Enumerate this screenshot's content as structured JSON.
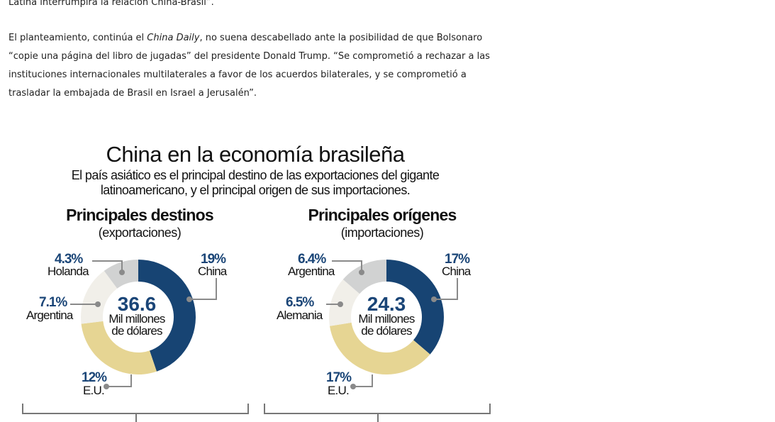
{
  "article": {
    "line0": "Latina interrumpirá la relación China-Brasil”.",
    "p1_a": "El planteamiento, continúa el ",
    "p1_em": "China Daily",
    "p1_b": ", no suena descabellado ante la posibilidad de que Bolsonaro “copie una página del libro de jugadas” del presidente Donald Trump. “Se comprometió a rechazar a las instituciones internacionales multilaterales a favor de los acuerdos bilaterales, y se comprometió a trasladar la embajada de Brasil en Israel a Jerusalén”."
  },
  "chart_data": [
    {
      "type": "pie",
      "title": "China en la economía brasileña",
      "subtitle_1": "El país asiático es el principal destino de las exportaciones del gigante",
      "subtitle_2": "latinoamericano, y el principal origen de sus importaciones.",
      "heading": "Principales destinos",
      "subheading": "(exportaciones)",
      "total": "36.6",
      "total_unit_1": "Mil millones",
      "total_unit_2": "de dólares",
      "slices": [
        {
          "label": "China",
          "value": 19,
          "pct": "19%",
          "color": "#174473"
        },
        {
          "label": "E.U.",
          "value": 12,
          "pct": "12%",
          "color": "#e6d593"
        },
        {
          "label": "Argentina",
          "value": 7.1,
          "pct": "7.1%",
          "color": "#f1efe9"
        },
        {
          "label": "Holanda",
          "value": 4.3,
          "pct": "4.3%",
          "color": "#d1d2d2"
        }
      ]
    },
    {
      "type": "pie",
      "heading": "Principales orígenes",
      "subheading": "(importaciones)",
      "total": "24.3",
      "total_unit_1": "Mil millones",
      "total_unit_2": "de dólares",
      "slices": [
        {
          "label": "China",
          "value": 17,
          "pct": "17%",
          "color": "#174473"
        },
        {
          "label": "E.U.",
          "value": 17,
          "pct": "17%",
          "color": "#e6d593"
        },
        {
          "label": "Alemania",
          "value": 6.5,
          "pct": "6.5%",
          "color": "#f1efe9"
        },
        {
          "label": "Argentina",
          "value": 6.4,
          "pct": "6.4%",
          "color": "#d1d2d2"
        }
      ]
    }
  ]
}
